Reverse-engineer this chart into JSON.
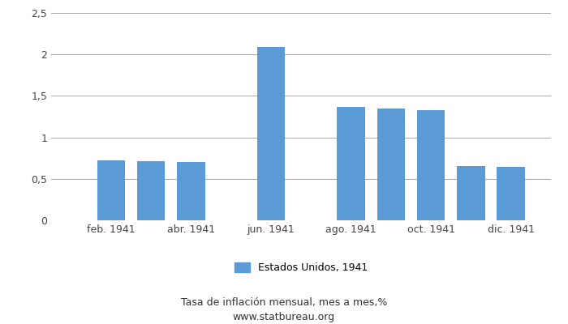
{
  "month_indices": [
    1,
    2,
    3,
    4,
    5,
    6,
    7,
    8,
    9,
    10,
    11,
    12
  ],
  "values": [
    null,
    0.72,
    0.71,
    0.7,
    null,
    2.09,
    null,
    1.37,
    1.35,
    1.33,
    0.65,
    0.64
  ],
  "bar_color": "#5B9BD5",
  "xtick_labels": [
    "feb. 1941",
    "abr. 1941",
    "jun. 1941",
    "ago. 1941",
    "oct. 1941",
    "dic. 1941"
  ],
  "xtick_positions": [
    2,
    4,
    6,
    8,
    10,
    12
  ],
  "xlim": [
    0.5,
    13.0
  ],
  "ylim": [
    0,
    2.5
  ],
  "yticks": [
    0,
    0.5,
    1.0,
    1.5,
    2.0,
    2.5
  ],
  "ytick_labels": [
    "0",
    "0,5",
    "1",
    "1,5",
    "2",
    "2,5"
  ],
  "legend_label": "Estados Unidos, 1941",
  "subtitle": "Tasa de inflación mensual, mes a mes,%",
  "watermark": "www.statbureau.org",
  "background_color": "#ffffff",
  "grid_color": "#aaaaaa",
  "bar_width": 0.7
}
